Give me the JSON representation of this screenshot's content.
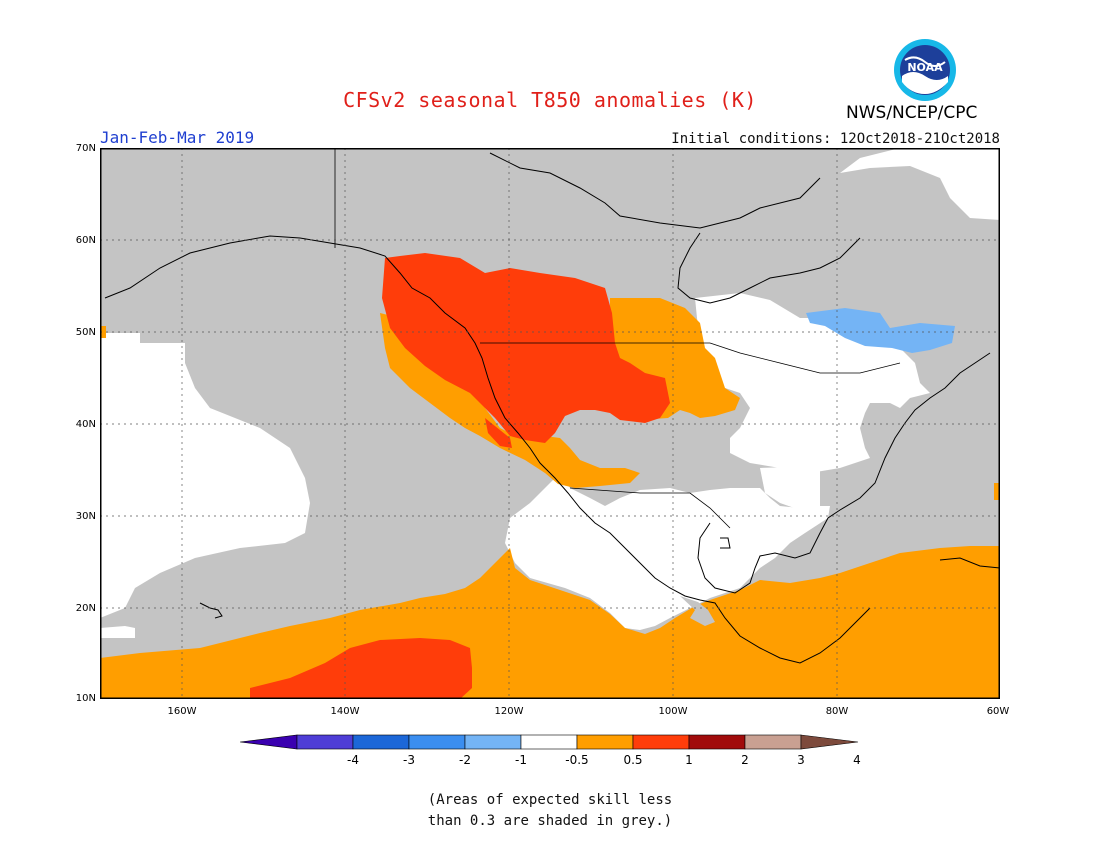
{
  "header": {
    "title": "CFSv2 seasonal T850 anomalies (K)",
    "organization": "NWS/NCEP/CPC",
    "logo_text": "NOAA",
    "season": "Jan-Feb-Mar 2019",
    "initial_conditions": "Initial conditions: 12Oct2018-21Oct2018"
  },
  "map": {
    "region": "North America and eastern Pacific",
    "lat_range": [
      10,
      70
    ],
    "lon_range": [
      -170,
      -60
    ],
    "lat_labels": [
      "70N",
      "60N",
      "50N",
      "40N",
      "30N",
      "20N",
      "10N"
    ],
    "lon_labels": [
      "160W",
      "140W",
      "120W",
      "100W",
      "80W",
      "60W"
    ],
    "grid": "dotted",
    "colors": {
      "grey": "#c4c4c4",
      "white": "#ffffff",
      "orange": "#ff9e00",
      "red_orange": "#ff3d0a",
      "blue": "#74b4f5"
    }
  },
  "colorbar": {
    "labels": [
      "-4",
      "-3",
      "-2",
      "-1",
      "-0.5",
      "0.5",
      "1",
      "2",
      "3",
      "4"
    ],
    "colors": [
      "#3a00b0",
      "#4e3dd6",
      "#1c67d8",
      "#3b8ef0",
      "#74b4f5",
      "#ffffff",
      "#ff9e00",
      "#ff3d0a",
      "#a10b0b",
      "#c9a092",
      "#7d4a3c"
    ]
  },
  "note": {
    "line1": "(Areas of expected skill less",
    "line2": "than 0.3 are shaded in grey.)"
  }
}
